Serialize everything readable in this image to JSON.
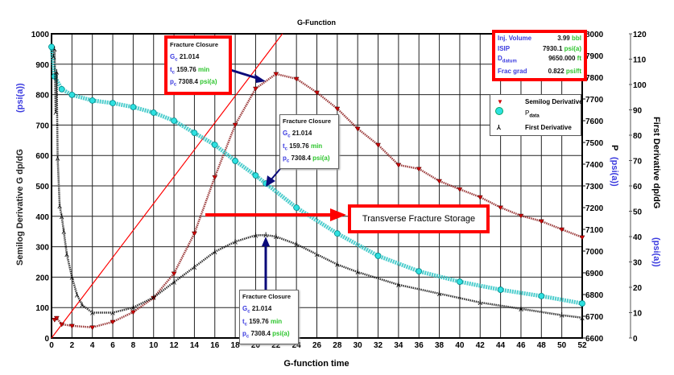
{
  "chart_data": {
    "type": "scatter",
    "title": "G-Function",
    "xlabel": "G-function time",
    "ylabel_left": "Semilog Derivative   G dp/dG",
    "ylabel_left_unit": "(psi(a))",
    "ylabel_right1": "P",
    "ylabel_right1_unit": "(psi(a))",
    "ylabel_right2": "First Derivative   dp/dG",
    "ylabel_right2_unit": "(psi(a))",
    "xlim": [
      0,
      52
    ],
    "ylim_left": [
      0,
      1000
    ],
    "ylim_right1": [
      6600,
      8000
    ],
    "ylim_right2": [
      0,
      120
    ],
    "xticks": [
      0,
      2,
      4,
      6,
      8,
      10,
      12,
      14,
      16,
      18,
      20,
      22,
      24,
      26,
      28,
      30,
      32,
      34,
      36,
      38,
      40,
      42,
      44,
      46,
      48,
      50,
      52
    ],
    "yticks_left": [
      0,
      100,
      200,
      300,
      400,
      500,
      600,
      700,
      800,
      900,
      1000
    ],
    "yticks_right1": [
      6600,
      6700,
      6800,
      6900,
      7000,
      7100,
      7200,
      7300,
      7400,
      7500,
      7600,
      7700,
      7800,
      7900,
      8000
    ],
    "yticks_right2": [
      0,
      10,
      20,
      30,
      40,
      50,
      60,
      70,
      80,
      90,
      100,
      110,
      120
    ],
    "grid": true,
    "legend_position": "top-right",
    "series": [
      {
        "name": "Semilog Derivative",
        "axis": "left",
        "color": "#8b1a1a",
        "x": [
          0.3,
          0.5,
          1,
          2,
          4,
          6,
          8,
          10,
          12,
          14,
          16,
          18,
          20,
          22,
          24,
          26,
          28,
          30,
          32,
          34,
          36,
          38,
          40,
          42,
          44,
          46,
          48,
          50,
          52
        ],
        "y": [
          60,
          66,
          45,
          40,
          35,
          53,
          85,
          132,
          212,
          344,
          529,
          701,
          820,
          868,
          852,
          807,
          754,
          688,
          635,
          569,
          556,
          516,
          489,
          463,
          429,
          402,
          384,
          357,
          331
        ]
      },
      {
        "name": "Pdata",
        "axis": "right1",
        "color": "#2ec4c4",
        "x": [
          0,
          0.3,
          1,
          2,
          4,
          6,
          8,
          10,
          12,
          14,
          16,
          18,
          20,
          21,
          24,
          28,
          32,
          36,
          40,
          44,
          48,
          52
        ],
        "y": [
          7940,
          7804,
          7745,
          7719,
          7693,
          7681,
          7663,
          7637,
          7600,
          7544,
          7489,
          7415,
          7348,
          7311,
          7200,
          7081,
          6978,
          6907,
          6859,
          6822,
          6793,
          6759
        ]
      },
      {
        "name": "First Derivative",
        "axis": "right2",
        "color": "#111111",
        "x": [
          0.2,
          0.3,
          0.5,
          0.4,
          0.6,
          0.8,
          1,
          1.2,
          1.5,
          2,
          2.5,
          3,
          4,
          6,
          8,
          10,
          12,
          14,
          16,
          18,
          20,
          21,
          22,
          24,
          26,
          28,
          30,
          34,
          38,
          42,
          46,
          50,
          52
        ],
        "y": [
          111,
          114,
          105,
          89,
          71,
          52,
          48,
          42,
          33,
          24,
          17,
          13,
          10,
          10,
          12,
          16,
          22,
          28,
          34,
          38,
          40.5,
          40.6,
          40,
          37,
          33,
          29,
          26,
          21,
          17.5,
          14,
          11.5,
          9,
          8
        ]
      }
    ],
    "reference_line": {
      "name": "tangent line",
      "color": "#ff0000",
      "slope": 44.2,
      "intercept": 0
    }
  },
  "closure": {
    "title": "Fracture Closure",
    "g_label": "G",
    "g_sub": "c",
    "g_value": "21.014",
    "t_label": "t",
    "t_sub": "c",
    "t_value": "159.76",
    "t_unit": "min",
    "p_label": "p",
    "p_sub": "c",
    "p_value": "7308.4",
    "p_unit": "psi(a)"
  },
  "info": {
    "inj_label": "Inj. Volume",
    "inj_value": "3.99",
    "inj_unit": "bbl",
    "isip_label": "ISIP",
    "isip_value": "7930.1",
    "isip_unit": "psi(a)",
    "datum_label": "D",
    "datum_sub": "datum",
    "datum_value": "9650.000",
    "datum_unit": "ft",
    "frac_label": "Frac grad",
    "frac_value": "0.822",
    "frac_unit": "psi/ft"
  },
  "legend": {
    "semilog": "Semilog Derivative",
    "pdata": "P",
    "pdata_sub": "data",
    "first": "First Derivative"
  },
  "annotation": "Transverse Fracture Storage"
}
